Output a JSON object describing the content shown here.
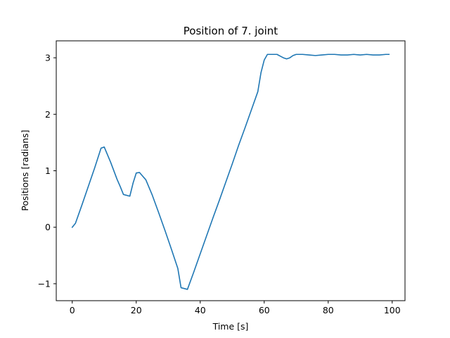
{
  "chart_data": {
    "type": "line",
    "title": "Position of 7. joint",
    "xlabel": "Time [s]",
    "ylabel": "Positions [radians]",
    "xlim": [
      -5,
      104
    ],
    "ylim": [
      -1.3,
      3.3
    ],
    "xticks": [
      0,
      20,
      40,
      60,
      80,
      100
    ],
    "xtick_labels": [
      "0",
      "20",
      "40",
      "60",
      "80",
      "100"
    ],
    "yticks": [
      -1,
      0,
      1,
      2,
      3
    ],
    "ytick_labels": [
      "−1",
      "0",
      "1",
      "2",
      "3"
    ],
    "grid": false,
    "series": [
      {
        "color": "#1f77b4",
        "x": [
          0,
          1,
          3,
          5,
          7,
          9,
          10,
          12,
          14,
          15,
          16,
          18,
          19,
          20,
          21,
          23,
          25,
          27,
          29,
          31,
          33,
          34,
          36,
          38,
          40,
          42,
          44,
          46,
          48,
          50,
          52,
          54,
          56,
          58,
          59,
          60,
          61,
          62,
          63,
          64,
          65,
          66,
          67,
          68,
          69,
          70,
          72,
          74,
          76,
          78,
          80,
          82,
          84,
          86,
          88,
          90,
          92,
          94,
          96,
          98,
          99
        ],
        "y": [
          0.0,
          0.07,
          0.39,
          0.72,
          1.05,
          1.4,
          1.42,
          1.15,
          0.85,
          0.72,
          0.58,
          0.55,
          0.78,
          0.96,
          0.97,
          0.84,
          0.57,
          0.26,
          -0.06,
          -0.39,
          -0.73,
          -1.07,
          -1.1,
          -0.79,
          -0.47,
          -0.15,
          0.17,
          0.48,
          0.8,
          1.12,
          1.45,
          1.76,
          2.08,
          2.4,
          2.74,
          2.96,
          3.06,
          3.06,
          3.06,
          3.06,
          3.03,
          3.0,
          2.98,
          3.0,
          3.04,
          3.06,
          3.06,
          3.05,
          3.04,
          3.05,
          3.06,
          3.06,
          3.05,
          3.05,
          3.06,
          3.05,
          3.06,
          3.05,
          3.05,
          3.06,
          3.06
        ]
      }
    ]
  }
}
